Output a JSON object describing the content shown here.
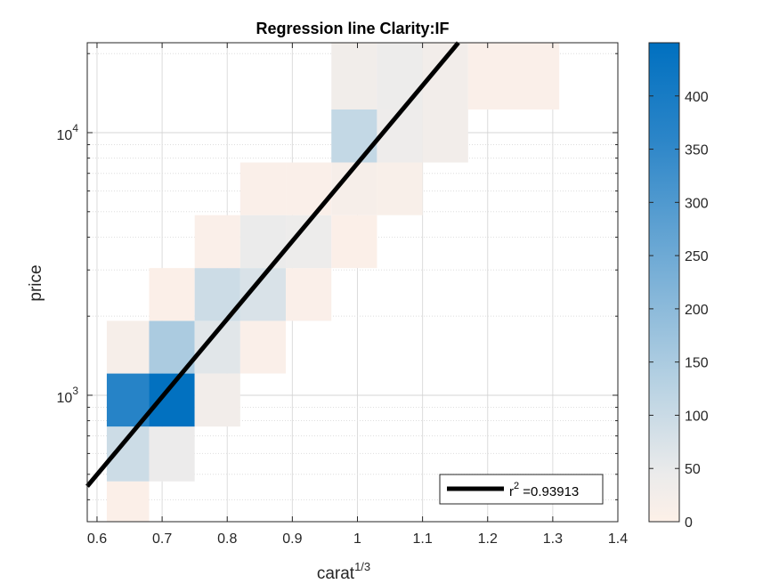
{
  "chart_data": {
    "type": "heatmap",
    "title": "Regression line Clarity:IF",
    "xlabel": "carat",
    "xlabel_superscript": "1/3",
    "ylabel": "price",
    "xlim": [
      0.585,
      1.4
    ],
    "ylim": [
      330,
      22000
    ],
    "yscale": "log",
    "grid": true,
    "minor_grid_y": true,
    "x_ticks": [
      0.6,
      0.7,
      0.8,
      0.9,
      1,
      1.1,
      1.2,
      1.3,
      1.4
    ],
    "x_tick_labels": [
      "0.6",
      "0.7",
      "0.8",
      "0.9",
      "1",
      "1.1",
      "1.2",
      "1.3",
      "1.4"
    ],
    "y_ticks": [
      1000,
      10000
    ],
    "y_tick_labels": [
      {
        "base": "10",
        "exp": "3"
      },
      {
        "base": "10",
        "exp": "4"
      }
    ],
    "colormap": [
      "#fdf0e8",
      "#ebebeb",
      "#b4d0e2",
      "#2b85c8",
      "#0070c0"
    ],
    "colorbar": {
      "range": [
        0,
        450
      ],
      "ticks": [
        0,
        50,
        100,
        150,
        200,
        250,
        300,
        350,
        400
      ],
      "tick_labels": [
        "0",
        "50",
        "100",
        "150",
        "200",
        "250",
        "300",
        "350",
        "400"
      ]
    },
    "cells": [
      {
        "x0": 0.615,
        "x1": 0.68,
        "y0": 330,
        "y1": 470,
        "count": 6
      },
      {
        "x0": 0.615,
        "x1": 0.68,
        "y0": 470,
        "y1": 760,
        "count": 95
      },
      {
        "x0": 0.68,
        "x1": 0.75,
        "y0": 470,
        "y1": 760,
        "count": 42
      },
      {
        "x0": 0.615,
        "x1": 0.68,
        "y0": 760,
        "y1": 1210,
        "count": 370
      },
      {
        "x0": 0.68,
        "x1": 0.75,
        "y0": 760,
        "y1": 1210,
        "count": 445
      },
      {
        "x0": 0.75,
        "x1": 0.82,
        "y0": 760,
        "y1": 1210,
        "count": 28
      },
      {
        "x0": 0.615,
        "x1": 0.68,
        "y0": 1210,
        "y1": 1920,
        "count": 18
      },
      {
        "x0": 0.68,
        "x1": 0.75,
        "y0": 1210,
        "y1": 1920,
        "count": 150
      },
      {
        "x0": 0.75,
        "x1": 0.82,
        "y0": 1210,
        "y1": 1920,
        "count": 62
      },
      {
        "x0": 0.82,
        "x1": 0.89,
        "y0": 1210,
        "y1": 1920,
        "count": 8
      },
      {
        "x0": 0.68,
        "x1": 0.75,
        "y0": 1920,
        "y1": 3050,
        "count": 6
      },
      {
        "x0": 0.75,
        "x1": 0.82,
        "y0": 1920,
        "y1": 3050,
        "count": 95
      },
      {
        "x0": 0.82,
        "x1": 0.89,
        "y0": 1920,
        "y1": 3050,
        "count": 75
      },
      {
        "x0": 0.89,
        "x1": 0.96,
        "y0": 1920,
        "y1": 3050,
        "count": 8
      },
      {
        "x0": 0.75,
        "x1": 0.82,
        "y0": 3050,
        "y1": 4850,
        "count": 8
      },
      {
        "x0": 0.82,
        "x1": 0.89,
        "y0": 3050,
        "y1": 4850,
        "count": 45
      },
      {
        "x0": 0.89,
        "x1": 0.96,
        "y0": 3050,
        "y1": 4850,
        "count": 40
      },
      {
        "x0": 0.96,
        "x1": 1.03,
        "y0": 3050,
        "y1": 4850,
        "count": 6
      },
      {
        "x0": 0.82,
        "x1": 0.89,
        "y0": 4850,
        "y1": 7700,
        "count": 8
      },
      {
        "x0": 0.89,
        "x1": 0.96,
        "y0": 4850,
        "y1": 7700,
        "count": 8
      },
      {
        "x0": 0.96,
        "x1": 1.03,
        "y0": 4850,
        "y1": 7700,
        "count": 18
      },
      {
        "x0": 1.03,
        "x1": 1.1,
        "y0": 4850,
        "y1": 7700,
        "count": 12
      },
      {
        "x0": 0.96,
        "x1": 1.03,
        "y0": 7700,
        "y1": 12250,
        "count": 110
      },
      {
        "x0": 1.03,
        "x1": 1.1,
        "y0": 7700,
        "y1": 12250,
        "count": 38
      },
      {
        "x0": 1.1,
        "x1": 1.17,
        "y0": 7700,
        "y1": 12250,
        "count": 28
      },
      {
        "x0": 0.96,
        "x1": 1.03,
        "y0": 12250,
        "y1": 22000,
        "count": 30
      },
      {
        "x0": 1.03,
        "x1": 1.1,
        "y0": 12250,
        "y1": 22000,
        "count": 40
      },
      {
        "x0": 1.1,
        "x1": 1.17,
        "y0": 12250,
        "y1": 22000,
        "count": 28
      },
      {
        "x0": 1.17,
        "x1": 1.31,
        "y0": 12250,
        "y1": 22000,
        "count": 8
      }
    ],
    "regression_line": {
      "x": [
        0.585,
        1.155
      ],
      "y": [
        450,
        22000
      ],
      "color": "#000000"
    },
    "legend": {
      "position": "bottom-right",
      "label_base": "r",
      "label_exp": "2",
      "label_value": " =0.93913"
    }
  }
}
